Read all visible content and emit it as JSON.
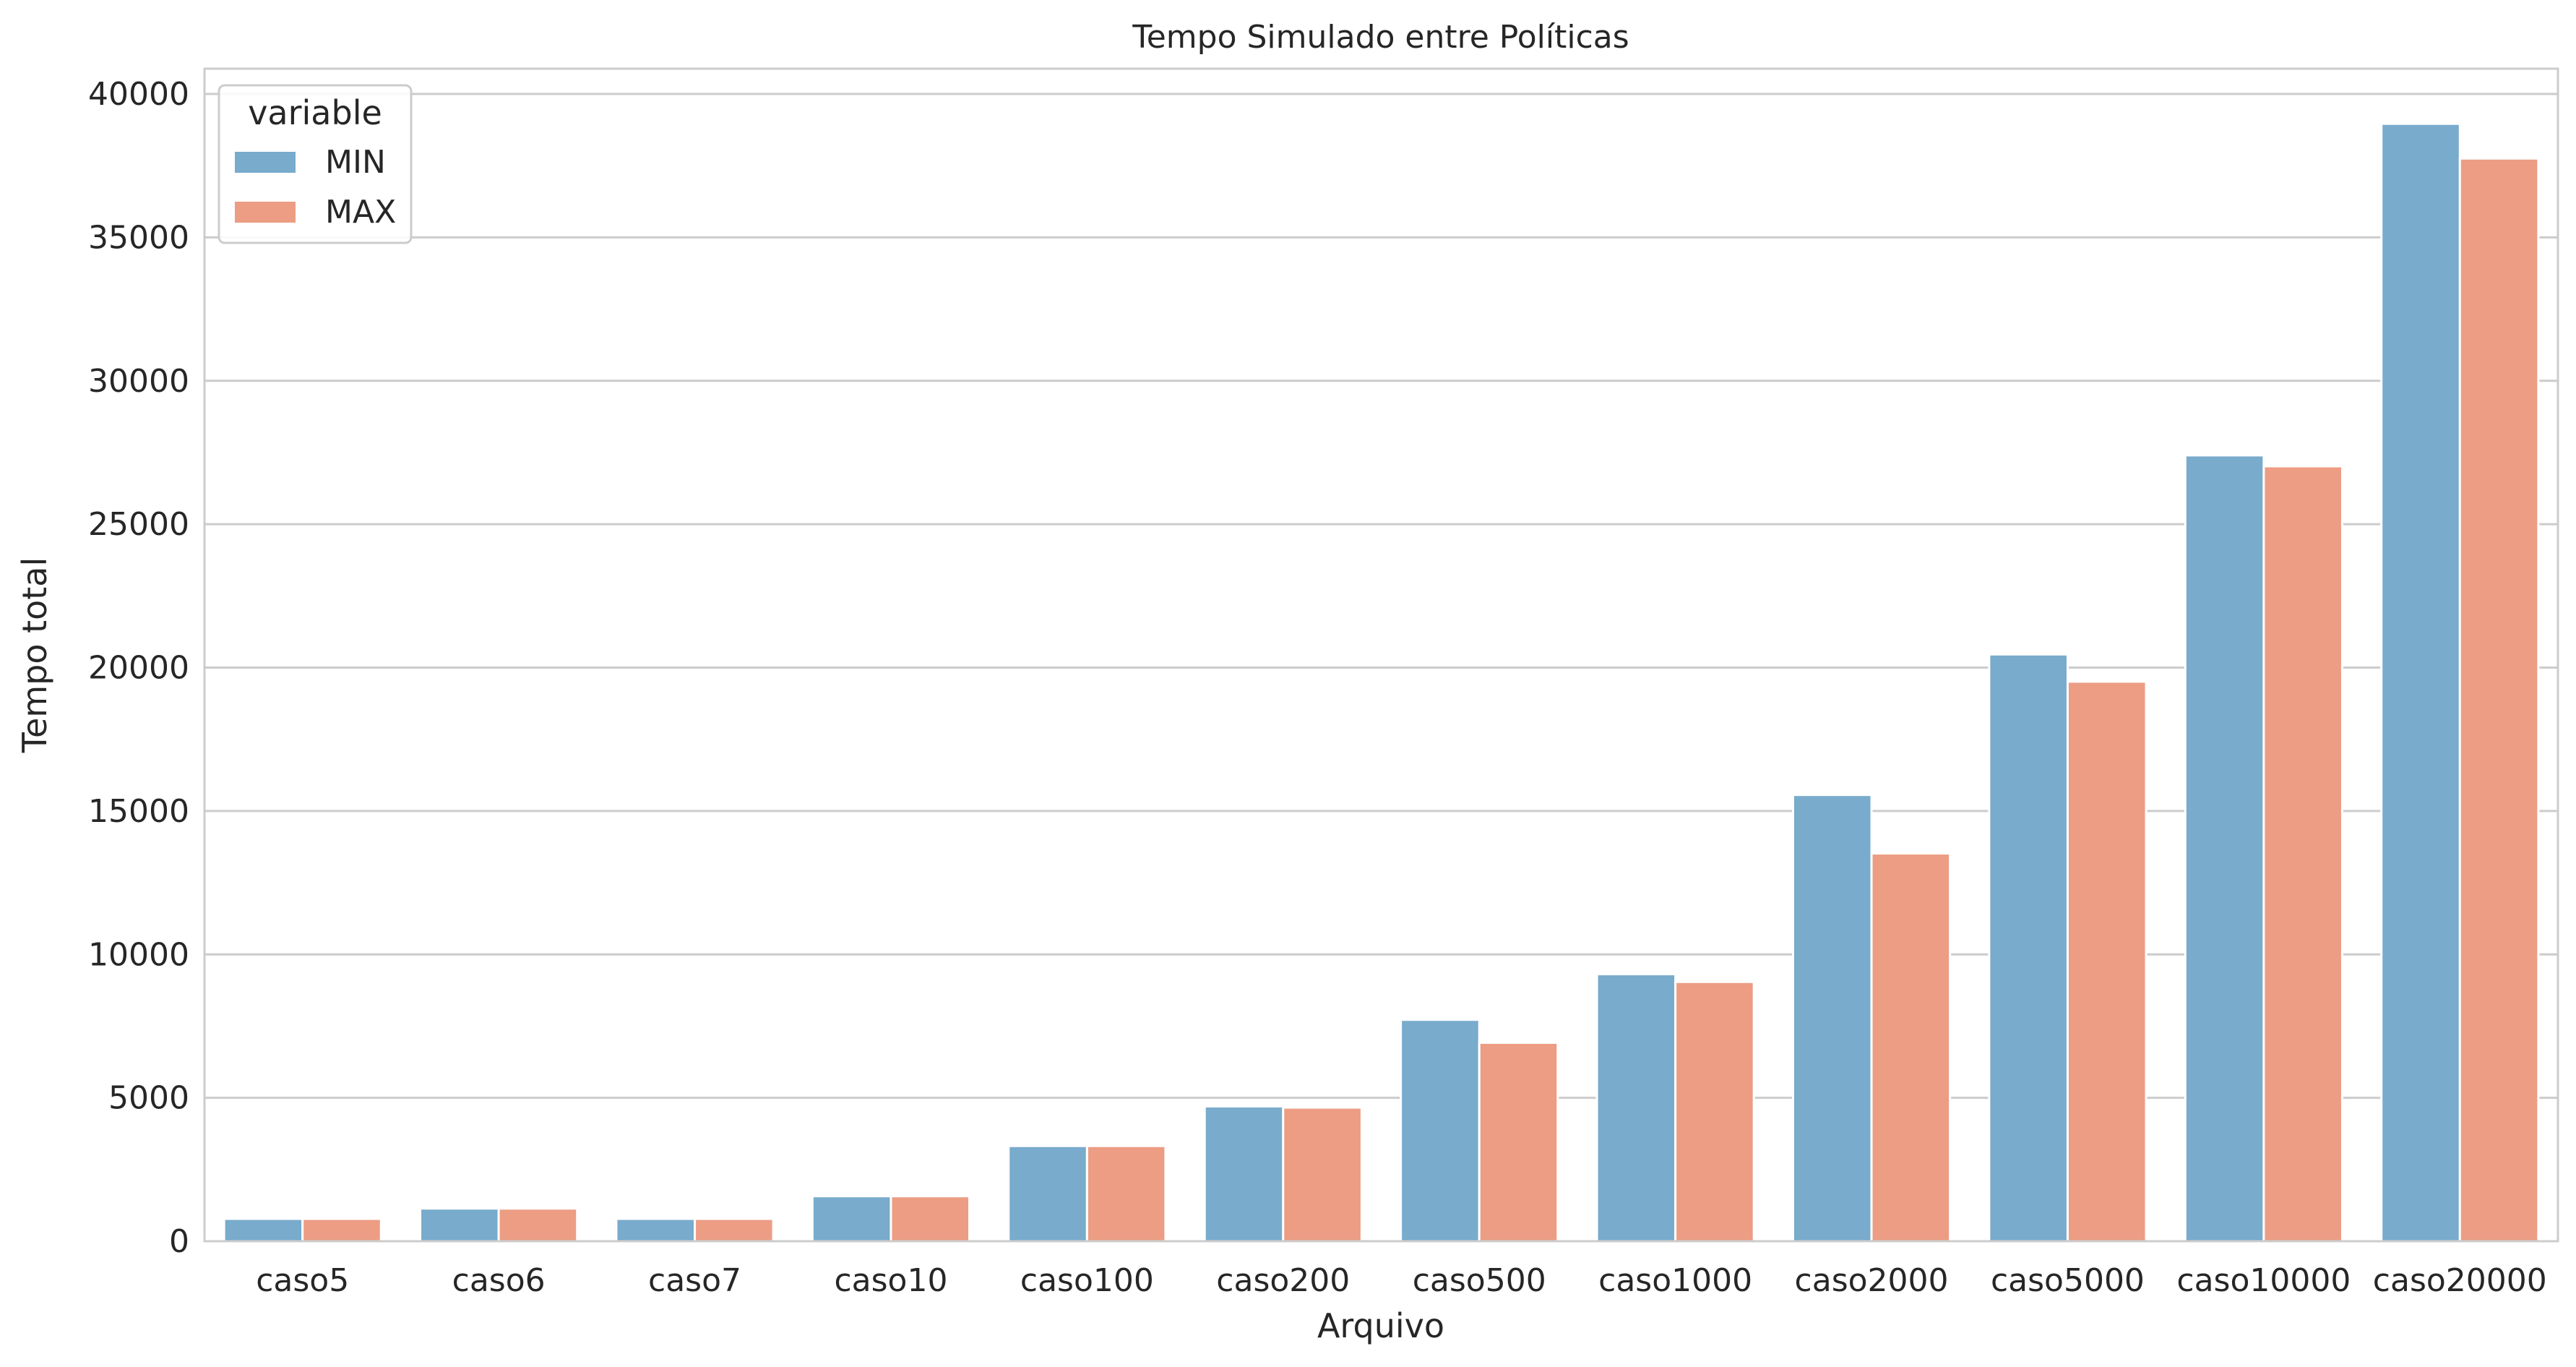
{
  "chart_data": {
    "type": "bar",
    "title": "Tempo Simulado entre Políticas",
    "xlabel": "Arquivo",
    "ylabel": "Tempo total",
    "categories": [
      "caso5",
      "caso6",
      "caso7",
      "caso10",
      "caso100",
      "caso200",
      "caso500",
      "caso1000",
      "caso2000",
      "caso5000",
      "caso10000",
      "caso20000"
    ],
    "series": [
      {
        "name": "MIN",
        "color": "#78abcc",
        "values": [
          780,
          1140,
          780,
          1570,
          3320,
          4700,
          7720,
          9310,
          15560,
          20460,
          27400,
          38960
        ]
      },
      {
        "name": "MAX",
        "color": "#ec9d83",
        "values": [
          780,
          1140,
          780,
          1570,
          3320,
          4660,
          6920,
          9040,
          13520,
          19510,
          27020,
          37750
        ]
      }
    ],
    "ylim": [
      0,
      40000
    ],
    "yticks": [
      "0",
      "5000",
      "10000",
      "15000",
      "20000",
      "25000",
      "30000",
      "35000",
      "40000"
    ],
    "grid": "horizontal",
    "legend": {
      "title": "variable",
      "placement": "top-left"
    }
  }
}
